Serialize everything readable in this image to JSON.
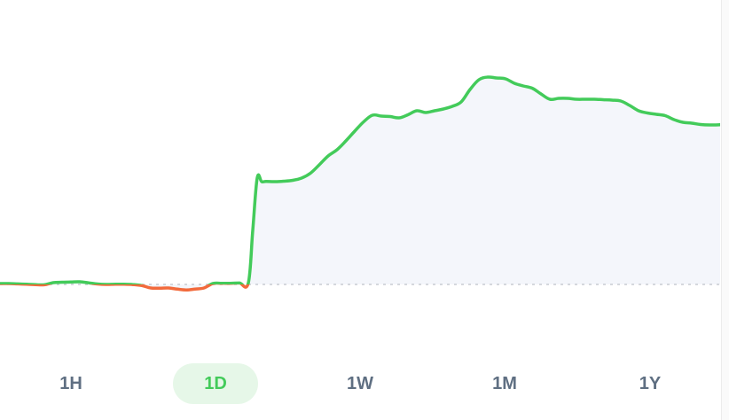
{
  "chart_data": {
    "type": "line",
    "title": "",
    "xlabel": "",
    "ylabel": "",
    "x": [
      0,
      10,
      20,
      30,
      40,
      50,
      60,
      70,
      80,
      90,
      100,
      110,
      120,
      130,
      140,
      150,
      160,
      170,
      180,
      190,
      200,
      210,
      220,
      230,
      240,
      250,
      260,
      270,
      280,
      285,
      290,
      295,
      300,
      310,
      320,
      330,
      340,
      350,
      360,
      370,
      380,
      390,
      400,
      410,
      420,
      430,
      440,
      450,
      460,
      470,
      480,
      490,
      500,
      510,
      520,
      530,
      540,
      550,
      560,
      570,
      580,
      590,
      600,
      610,
      620,
      630,
      640,
      650,
      660,
      670,
      680,
      690,
      700,
      710,
      720,
      730,
      740,
      750,
      760,
      770,
      780,
      790,
      800,
      812
    ],
    "values": [
      1.0,
      1.0,
      0.6,
      0.2,
      -0.3,
      -0.4,
      2.0,
      2.5,
      2.8,
      3.0,
      1.8,
      0.5,
      0.0,
      0.2,
      0.2,
      -0.2,
      -1.3,
      -4.0,
      -4.2,
      -4.0,
      -5.3,
      -6.2,
      -5.2,
      -4.0,
      1.0,
      1.3,
      1.3,
      1.6,
      1.6,
      61.0,
      120.0,
      116.0,
      116.2,
      116.0,
      116.5,
      117.5,
      120.0,
      125.5,
      135.0,
      145.0,
      152.0,
      162.0,
      173.0,
      183.5,
      191.0,
      190.0,
      189.5,
      188.0,
      191.5,
      196.0,
      194.0,
      196.0,
      198.0,
      201.0,
      206.0,
      220.0,
      231.0,
      234.0,
      233.0,
      232.0,
      227.0,
      224.0,
      221.5,
      215.0,
      209.0,
      210.0,
      210.0,
      209.0,
      209.0,
      209.0,
      208.5,
      208.0,
      207.0,
      202.0,
      196.0,
      193.5,
      192.0,
      190.5,
      186.0,
      183.0,
      182.0,
      180.5,
      180.0,
      180.2
    ],
    "baseline": 0,
    "line_color_above": "#43cb5a",
    "line_color_below": "#f26a3c",
    "fill_color": "#f4f6fb",
    "baseline_color": "#c8ccd2",
    "grid": false,
    "legend": "none"
  },
  "range_selector": {
    "options": [
      "1H",
      "1D",
      "1W",
      "1M",
      "1Y"
    ],
    "selected": "1D",
    "active_bg": "#e6f7e8",
    "active_text": "#43cb5a",
    "text": "#5f6f82"
  }
}
